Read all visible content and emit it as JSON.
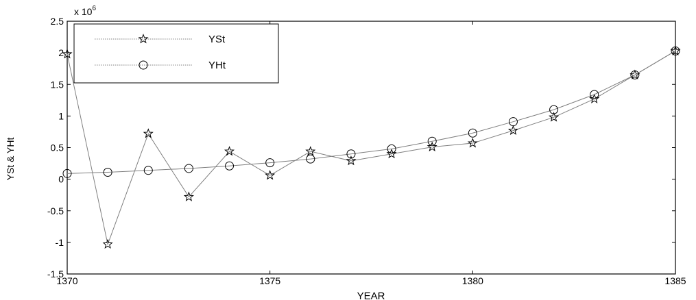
{
  "chart_data": {
    "type": "line",
    "xlabel": "YEAR",
    "ylabel": "YSt & YHt",
    "y_multiplier_label": "x 10",
    "y_multiplier_exponent": "6",
    "xlim": [
      1370,
      1385
    ],
    "ylim": [
      -1.5,
      2.5
    ],
    "x_ticks": [
      "1370",
      "1375",
      "1380",
      "1385"
    ],
    "y_ticks": [
      "-1.5",
      "-1",
      "-0.5",
      "0",
      "0.5",
      "1",
      "1.5",
      "2",
      "2.5"
    ],
    "grid": false,
    "legend_position": "top-left",
    "x": [
      1370,
      1371,
      1372,
      1373,
      1374,
      1375,
      1376,
      1377,
      1378,
      1379,
      1380,
      1381,
      1382,
      1383,
      1384,
      1385
    ],
    "series": [
      {
        "name": "YSt",
        "marker": "star",
        "values": [
          1.98,
          -1.03,
          0.72,
          -0.28,
          0.44,
          0.06,
          0.44,
          0.29,
          0.4,
          0.51,
          0.57,
          0.77,
          0.98,
          1.27,
          1.65,
          2.03
        ]
      },
      {
        "name": "YHt",
        "marker": "circle",
        "values": [
          0.09,
          0.11,
          0.14,
          0.17,
          0.21,
          0.26,
          0.32,
          0.4,
          0.48,
          0.6,
          0.73,
          0.91,
          1.1,
          1.34,
          1.65,
          2.03
        ]
      }
    ]
  },
  "colors": {
    "line": "#7f7f7f",
    "marker": "#000000",
    "axis": "#000000",
    "background": "#ffffff"
  }
}
